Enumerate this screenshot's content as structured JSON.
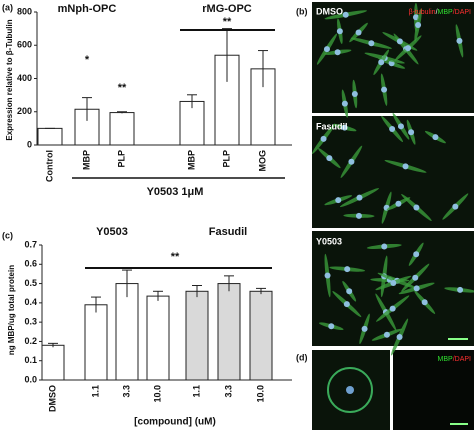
{
  "chart_data": [
    {
      "type": "bar",
      "panel": "(a)",
      "ylabel": "Expression relative to β-Tubulin",
      "group_labels": [
        "mNph-OPC",
        "rMG-OPC"
      ],
      "annotations": [
        "*",
        "**",
        "**"
      ],
      "bracket_label": "Y0503 1μM",
      "categories": [
        "Control",
        "MBP",
        "PLP",
        "MBP",
        "PLP",
        "MOG"
      ],
      "values": [
        100,
        215,
        195,
        262,
        540,
        458
      ],
      "errors": [
        0,
        70,
        5,
        40,
        160,
        110
      ],
      "colors": [
        "#ffffff",
        "#ffffff",
        "#ffffff",
        "#ffffff",
        "#ffffff",
        "#ffffff"
      ],
      "ylim": [
        0,
        800
      ],
      "yticks": [
        0,
        200,
        400,
        600,
        800
      ]
    },
    {
      "type": "bar",
      "panel": "(c)",
      "ylabel": "ng MBP/ug total protein",
      "xlabel": "[compound] (uM)",
      "group_labels": [
        "Y0503",
        "Fasudil"
      ],
      "annotations": [
        "**"
      ],
      "categories": [
        "DMSO",
        "1.1",
        "3.3",
        "10.0",
        "1.1",
        "3.3",
        "10.0"
      ],
      "values": [
        0.18,
        0.39,
        0.5,
        0.435,
        0.46,
        0.5,
        0.46
      ],
      "errors": [
        0.01,
        0.04,
        0.07,
        0.025,
        0.03,
        0.04,
        0.015
      ],
      "colors": [
        "#ffffff",
        "#ffffff",
        "#ffffff",
        "#ffffff",
        "#d9d9d9",
        "#d9d9d9",
        "#d9d9d9"
      ],
      "ylim": [
        0,
        0.7
      ],
      "yticks": [
        {
          "value": 0,
          "label": "0.0"
        },
        0.1,
        0.2,
        0.3,
        0.4,
        0.5,
        0.6,
        0.7
      ]
    }
  ],
  "images": {
    "panel_b": "(b)",
    "panel_d": "(d)",
    "labels": [
      "DMSO",
      "Fasudil",
      "Y0503"
    ],
    "legend_b": [
      "β-tubulin",
      "/",
      "MBP",
      "/DAPI"
    ],
    "legend_d": [
      "MBP",
      "/DAPI"
    ]
  }
}
